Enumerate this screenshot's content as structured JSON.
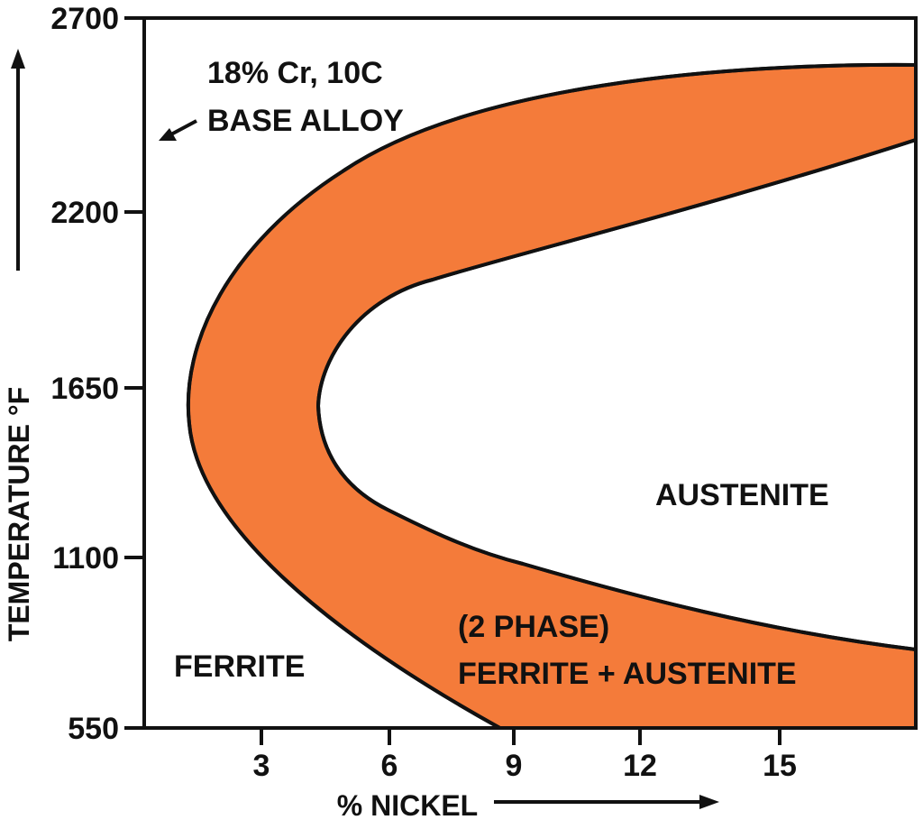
{
  "colors": {
    "two_phase_fill": "#F47B3A",
    "line": "#111111",
    "background": "#ffffff"
  },
  "axes": {
    "y_title": "TEMPERATURE °F",
    "x_title": "% NICKEL",
    "y_ticks": [
      "2700",
      "2200",
      "1650",
      "1100",
      "550"
    ],
    "x_ticks": [
      "3",
      "6",
      "9",
      "12",
      "15"
    ]
  },
  "annotations": {
    "base_line1": "18% Cr, 10C",
    "base_line2": "BASE ALLOY"
  },
  "regions": {
    "ferrite": "FERRITE",
    "austenite": "AUSTENITE",
    "two_phase_line1": "(2 PHASE)",
    "two_phase_line2": "FERRITE + AUSTENITE"
  },
  "icons": {
    "y_axis_arrow": "up-arrow-icon",
    "x_axis_arrow": "right-arrow-icon",
    "base_alloy_pointer": "pointer-arrow-icon"
  }
}
